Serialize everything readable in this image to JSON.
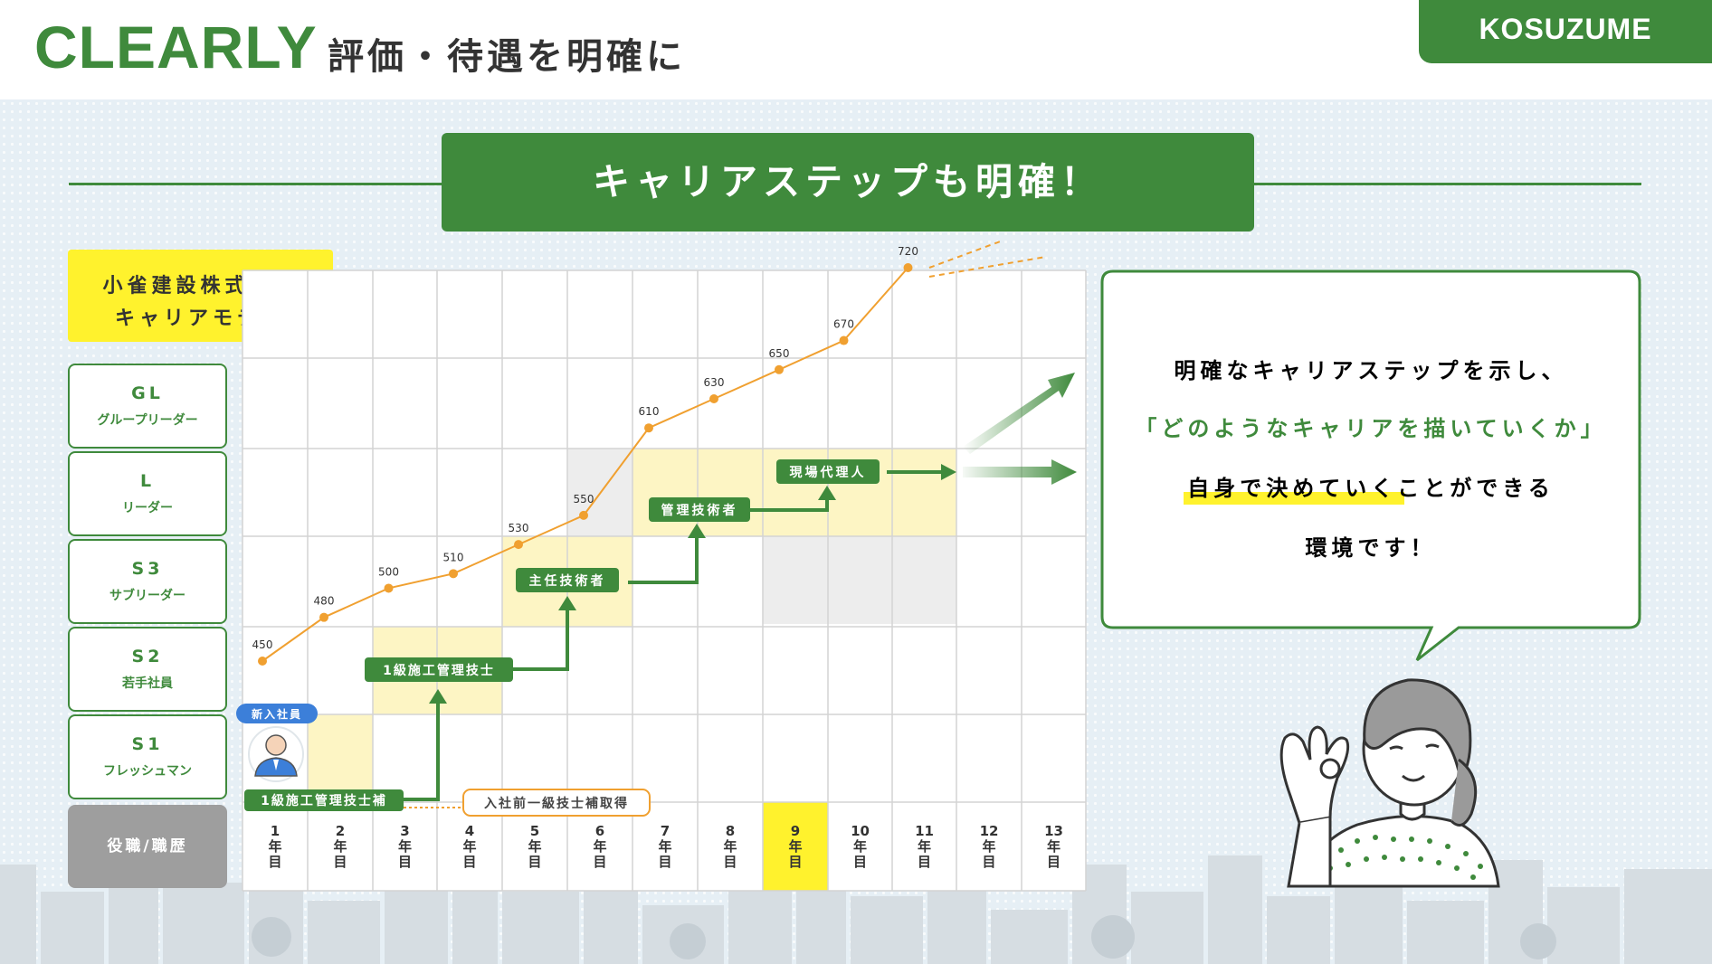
{
  "header": {
    "brand": "CLEARLY",
    "subtitle": "評価・待遇を明確に",
    "logo": "KOSUZUME"
  },
  "banner": {
    "title": "キャリアステップも明確！"
  },
  "company": {
    "line1": "小雀建設株式会社",
    "line2": "キャリアモデル"
  },
  "roles": [
    {
      "code": "GL",
      "name": "グループリーダー"
    },
    {
      "code": "L",
      "name": "リーダー"
    },
    {
      "code": "S3",
      "name": "サブリーダー"
    },
    {
      "code": "S2",
      "name": "若手社員"
    },
    {
      "code": "S1",
      "name": "フレッシュマン"
    }
  ],
  "axis_corner": "役職/職歴",
  "years": [
    {
      "num": "1",
      "a": "年",
      "b": "目"
    },
    {
      "num": "2",
      "a": "年",
      "b": "目"
    },
    {
      "num": "3",
      "a": "年",
      "b": "目"
    },
    {
      "num": "4",
      "a": "年",
      "b": "目"
    },
    {
      "num": "5",
      "a": "年",
      "b": "目"
    },
    {
      "num": "6",
      "a": "年",
      "b": "目"
    },
    {
      "num": "7",
      "a": "年",
      "b": "目"
    },
    {
      "num": "8",
      "a": "年",
      "b": "目"
    },
    {
      "num": "9",
      "a": "年",
      "b": "目"
    },
    {
      "num": "10",
      "a": "年",
      "b": "目"
    },
    {
      "num": "11",
      "a": "年",
      "b": "目"
    },
    {
      "num": "12",
      "a": "年",
      "b": "目"
    },
    {
      "num": "13",
      "a": "年",
      "b": "目"
    }
  ],
  "highlight_year": "9",
  "chart_data": {
    "type": "line",
    "x": [
      1,
      2,
      3,
      4,
      5,
      6,
      7,
      8,
      9,
      10,
      11
    ],
    "values": [
      450,
      480,
      500,
      510,
      530,
      550,
      610,
      630,
      650,
      670,
      720
    ],
    "labels": [
      "450",
      "480",
      "500",
      "510",
      "530",
      "550",
      "610",
      "630",
      "650",
      "670",
      "720"
    ],
    "line_color": "#f0a030"
  },
  "badges": {
    "new_employee": "新入社員",
    "step1": "1級施工管理技士補",
    "step2": "1級施工管理技士",
    "step3": "主任技術者",
    "step4": "管理技術者",
    "step5": "現場代理人",
    "pre_entry": "入社前一級技士補取得"
  },
  "callout": {
    "line1": "明確なキャリアステップを示し、",
    "line2": "「どのようなキャリアを描いていくか」",
    "line3": "自身で決めていくことができる",
    "line4": "環境です！"
  },
  "colors": {
    "green": "#3f8a3c",
    "yellow": "#fff22d",
    "pale_yellow": "#fdf5c4",
    "orange": "#f0a030",
    "blue_badge": "#3c7fd9"
  },
  "icons": [
    "avatar-icon",
    "woman-illustration",
    "city-skyline",
    "arrow-up-right-icon",
    "arrow-right-icon"
  ]
}
